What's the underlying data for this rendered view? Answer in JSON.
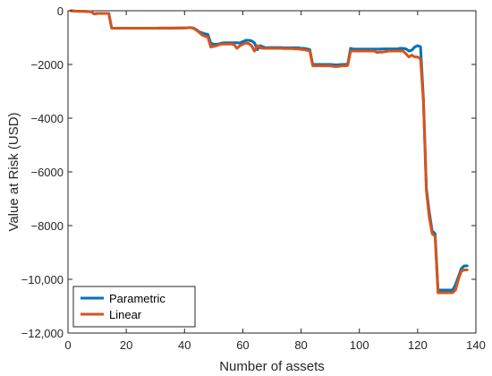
{
  "chart_data": {
    "type": "line",
    "title": "",
    "xlabel": "Number of assets",
    "ylabel": "Value at Risk  (USD)",
    "xlim": [
      0,
      140
    ],
    "ylim": [
      -12000,
      0
    ],
    "xticks": [
      0,
      20,
      40,
      60,
      80,
      100,
      120,
      140
    ],
    "xtick_labels": [
      "0",
      "20",
      "40",
      "60",
      "80",
      "100",
      "120",
      "140"
    ],
    "yticks": [
      0,
      -2000,
      -4000,
      -6000,
      -8000,
      -10000,
      -12000
    ],
    "ytick_labels": [
      "0",
      "−2000",
      "−4000",
      "−6000",
      "−8000",
      "−10,000",
      "−12,000"
    ],
    "grid": false,
    "legend_position": "bottom-left",
    "series": [
      {
        "name": "Parametric",
        "color": "#0072BD",
        "x": [
          1,
          2,
          3,
          4,
          5,
          6,
          7,
          8,
          9,
          10,
          11,
          12,
          13,
          14,
          15,
          16,
          17,
          18,
          19,
          20,
          22,
          24,
          26,
          28,
          30,
          32,
          34,
          36,
          38,
          40,
          42,
          43,
          44,
          45,
          46,
          47,
          48,
          49,
          50,
          51,
          52,
          53,
          54,
          55,
          56,
          57,
          58,
          59,
          60,
          61,
          62,
          63,
          64,
          65,
          66,
          67,
          68,
          69,
          70,
          71,
          72,
          73,
          74,
          75,
          76,
          77,
          78,
          79,
          80,
          81,
          82,
          83,
          84,
          85,
          86,
          87,
          88,
          89,
          90,
          91,
          92,
          93,
          94,
          95,
          96,
          97,
          98,
          99,
          100,
          101,
          102,
          103,
          104,
          105,
          106,
          107,
          108,
          109,
          110,
          111,
          112,
          113,
          114,
          115,
          116,
          117,
          118,
          119,
          120,
          121,
          122,
          123,
          124,
          125,
          126,
          127,
          128,
          129,
          130,
          131,
          132,
          133,
          134,
          135,
          136,
          137
        ],
        "y": [
          0,
          -10,
          -15,
          -20,
          -20,
          -25,
          -30,
          -40,
          -120,
          -100,
          -100,
          -100,
          -100,
          -100,
          -650,
          -650,
          -650,
          -650,
          -650,
          -650,
          -650,
          -650,
          -650,
          -650,
          -650,
          -645,
          -645,
          -645,
          -640,
          -640,
          -630,
          -640,
          -700,
          -780,
          -820,
          -860,
          -880,
          -1200,
          -1250,
          -1250,
          -1230,
          -1200,
          -1190,
          -1190,
          -1190,
          -1190,
          -1190,
          -1200,
          -1150,
          -1100,
          -1100,
          -1120,
          -1200,
          -1450,
          -1300,
          -1350,
          -1380,
          -1370,
          -1370,
          -1370,
          -1370,
          -1370,
          -1380,
          -1380,
          -1380,
          -1380,
          -1380,
          -1380,
          -1400,
          -1400,
          -1420,
          -1450,
          -2000,
          -2000,
          -2000,
          -2000,
          -2000,
          -2000,
          -2000,
          -2010,
          -2020,
          -2010,
          -2000,
          -2000,
          -1990,
          -1400,
          -1430,
          -1430,
          -1430,
          -1430,
          -1430,
          -1430,
          -1430,
          -1430,
          -1430,
          -1430,
          -1420,
          -1420,
          -1420,
          -1420,
          -1420,
          -1420,
          -1400,
          -1400,
          -1420,
          -1500,
          -1470,
          -1350,
          -1300,
          -1340,
          -3300,
          -6600,
          -7500,
          -8200,
          -8300,
          -10400,
          -10400,
          -10400,
          -10400,
          -10400,
          -10400,
          -10200,
          -9900,
          -9600,
          -9500,
          -9500
        ]
      },
      {
        "name": "Linear",
        "color": "#D95319",
        "x": [
          1,
          2,
          3,
          4,
          5,
          6,
          7,
          8,
          9,
          10,
          11,
          12,
          13,
          14,
          15,
          16,
          17,
          18,
          19,
          20,
          22,
          24,
          26,
          28,
          30,
          32,
          34,
          36,
          38,
          40,
          42,
          43,
          44,
          45,
          46,
          47,
          48,
          49,
          50,
          51,
          52,
          53,
          54,
          55,
          56,
          57,
          58,
          59,
          60,
          61,
          62,
          63,
          64,
          65,
          66,
          67,
          68,
          69,
          70,
          71,
          72,
          73,
          74,
          75,
          76,
          77,
          78,
          79,
          80,
          81,
          82,
          83,
          84,
          85,
          86,
          87,
          88,
          89,
          90,
          91,
          92,
          93,
          94,
          95,
          96,
          97,
          98,
          99,
          100,
          101,
          102,
          103,
          104,
          105,
          106,
          107,
          108,
          109,
          110,
          111,
          112,
          113,
          114,
          115,
          116,
          117,
          118,
          119,
          120,
          121,
          122,
          123,
          124,
          125,
          126,
          127,
          128,
          129,
          130,
          131,
          132,
          133,
          134,
          135,
          136,
          137
        ],
        "y": [
          0,
          -10,
          -15,
          -20,
          -20,
          -25,
          -30,
          -40,
          -120,
          -100,
          -100,
          -100,
          -100,
          -100,
          -650,
          -650,
          -650,
          -650,
          -650,
          -650,
          -650,
          -650,
          -650,
          -650,
          -650,
          -645,
          -645,
          -645,
          -640,
          -640,
          -630,
          -650,
          -720,
          -800,
          -900,
          -950,
          -980,
          -1350,
          -1330,
          -1300,
          -1260,
          -1240,
          -1240,
          -1240,
          -1240,
          -1260,
          -1400,
          -1300,
          -1250,
          -1200,
          -1220,
          -1300,
          -1500,
          -1300,
          -1380,
          -1400,
          -1400,
          -1400,
          -1400,
          -1400,
          -1400,
          -1400,
          -1410,
          -1410,
          -1410,
          -1410,
          -1420,
          -1420,
          -1440,
          -1450,
          -1470,
          -1500,
          -2050,
          -2050,
          -2050,
          -2050,
          -2050,
          -2050,
          -2050,
          -2070,
          -2080,
          -2070,
          -2050,
          -2050,
          -2040,
          -1500,
          -1500,
          -1500,
          -1500,
          -1500,
          -1500,
          -1500,
          -1500,
          -1500,
          -1550,
          -1540,
          -1540,
          -1520,
          -1500,
          -1500,
          -1500,
          -1500,
          -1500,
          -1500,
          -1600,
          -1720,
          -1650,
          -1720,
          -1720,
          -1800,
          -3400,
          -6700,
          -7700,
          -8300,
          -8400,
          -10500,
          -10500,
          -10500,
          -10500,
          -10500,
          -10500,
          -10400,
          -10000,
          -9700,
          -9650,
          -9650
        ]
      }
    ]
  }
}
